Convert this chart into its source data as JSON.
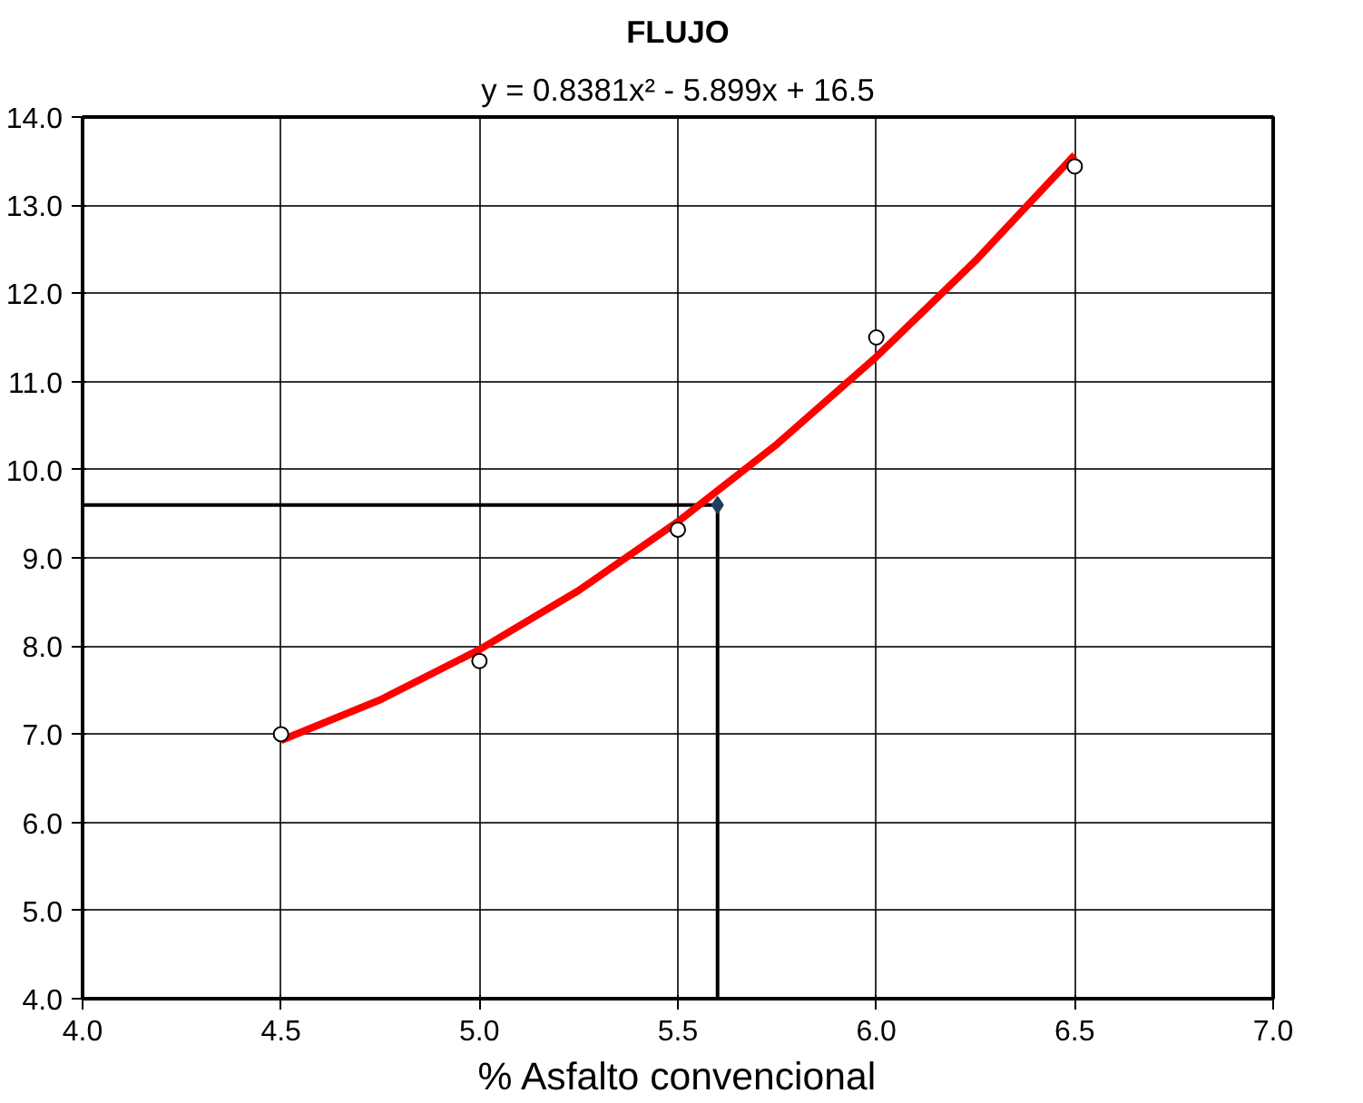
{
  "chart_data": {
    "type": "scatter",
    "title": "FLUJO",
    "subtitle": "y = 0.8381x² - 5.899x + 16.5",
    "xlabel": "% Asfalto convencional",
    "xlim": [
      4.0,
      7.0
    ],
    "ylim": [
      4.0,
      14.0
    ],
    "xticks": [
      {
        "value": 4,
        "label": "4.0"
      },
      {
        "value": 4.5,
        "label": "4.5"
      },
      {
        "value": 5,
        "label": "5.0"
      },
      {
        "value": 5.5,
        "label": "5.5"
      },
      {
        "value": 6,
        "label": "6.0"
      },
      {
        "value": 6.5,
        "label": "6.5"
      },
      {
        "value": 7,
        "label": "7.0"
      }
    ],
    "yticks": [
      {
        "value": 4,
        "label": "4.0"
      },
      {
        "value": 5,
        "label": "5.0"
      },
      {
        "value": 6,
        "label": "6.0"
      },
      {
        "value": 7,
        "label": "7.0"
      },
      {
        "value": 8,
        "label": "8.0"
      },
      {
        "value": 9,
        "label": "9.0"
      },
      {
        "value": 10,
        "label": "10.0"
      },
      {
        "value": 11,
        "label": "11.0"
      },
      {
        "value": 12,
        "label": "12.0"
      },
      {
        "value": 13,
        "label": "13.0"
      },
      {
        "value": 14,
        "label": "14.0"
      }
    ],
    "grid": true,
    "series": [
      {
        "type": "line",
        "color": "#000000",
        "x": [
          4.0,
          5.6,
          5.6
        ],
        "values": [
          9.6,
          9.6,
          4.0
        ],
        "marker": "none",
        "line_style": "solid"
      },
      {
        "type": "line",
        "color": "#ff0000",
        "x": [
          4.5,
          4.75,
          5.0,
          5.25,
          5.5,
          5.75,
          6.0,
          6.25,
          6.5
        ],
        "values": [
          6.93,
          7.39,
          7.96,
          8.63,
          9.41,
          10.29,
          11.28,
          12.37,
          13.57
        ],
        "marker": "none",
        "line_style": "solid"
      },
      {
        "color": "#000000",
        "x": [
          4.5,
          5.0,
          5.5,
          6.0,
          6.5
        ],
        "values": [
          7.0,
          7.83,
          9.32,
          11.5,
          13.44
        ],
        "marker": "circle"
      },
      {
        "color": "#1f3f5f",
        "x": [
          5.6
        ],
        "values": [
          9.6
        ],
        "marker": "diamond"
      }
    ]
  }
}
